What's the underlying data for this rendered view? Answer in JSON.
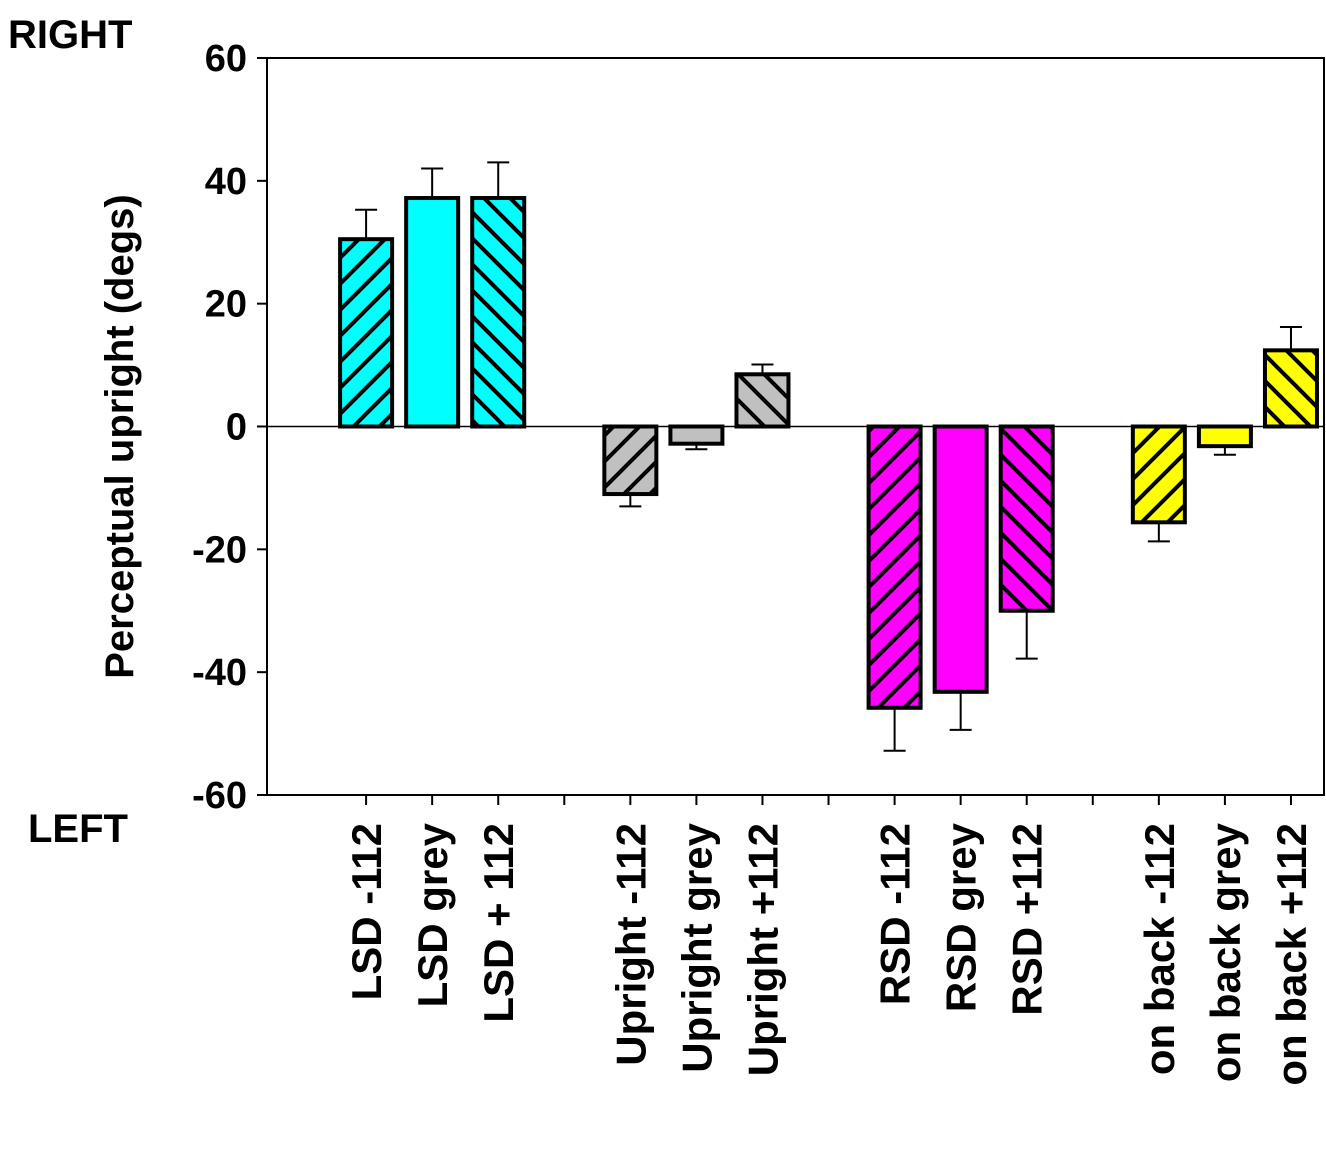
{
  "chart_data": {
    "type": "bar",
    "ylabel": "Perceptual upright (degs)",
    "ylim": [
      -60,
      60
    ],
    "yticks": [
      60,
      40,
      20,
      0,
      -20,
      -40,
      -60
    ],
    "annotations": {
      "top": "RIGHT",
      "bottom": "LEFT"
    },
    "colors": {
      "LSD": "#00ffff",
      "Upright": "#c0c0c0",
      "RSD": "#ff00ff",
      "on back": "#ffff00"
    },
    "groups": [
      {
        "name": "LSD",
        "bars": [
          {
            "label": "LSD -112",
            "value": 30.5,
            "error": 4.8,
            "pattern": "forward"
          },
          {
            "label": "LSD grey",
            "value": 37.2,
            "error": 4.8,
            "pattern": "solid"
          },
          {
            "label": "LSD + 112",
            "value": 37.2,
            "error": 5.8,
            "pattern": "back"
          }
        ]
      },
      {
        "name": "Upright",
        "bars": [
          {
            "label": "Upright -112",
            "value": -11.0,
            "error": 2.0,
            "pattern": "forward"
          },
          {
            "label": "Upright grey",
            "value": -2.8,
            "error": 0.9,
            "pattern": "solid"
          },
          {
            "label": "Upright +112",
            "value": 8.5,
            "error": 1.6,
            "pattern": "back"
          }
        ]
      },
      {
        "name": "RSD",
        "bars": [
          {
            "label": "RSD -112",
            "value": -45.8,
            "error": 7.0,
            "pattern": "forward"
          },
          {
            "label": "RSD grey",
            "value": -43.2,
            "error": 6.2,
            "pattern": "solid"
          },
          {
            "label": "RSD +112",
            "value": -30.0,
            "error": 7.8,
            "pattern": "back"
          }
        ]
      },
      {
        "name": "on back",
        "bars": [
          {
            "label": "on back -112",
            "value": -15.6,
            "error": 3.1,
            "pattern": "forward"
          },
          {
            "label": "on back grey",
            "value": -3.2,
            "error": 1.4,
            "pattern": "solid"
          },
          {
            "label": "on back +112",
            "value": 12.4,
            "error": 3.8,
            "pattern": "back"
          }
        ]
      }
    ]
  }
}
